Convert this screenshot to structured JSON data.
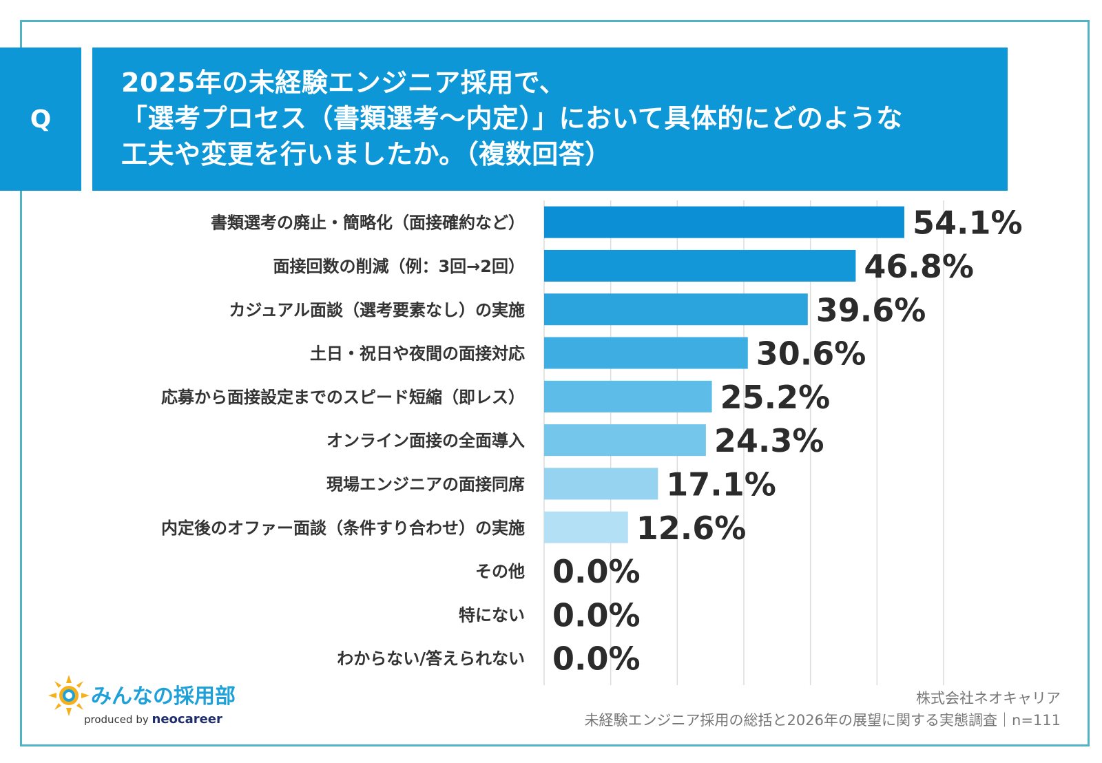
{
  "question": {
    "marker": "Q",
    "lines": [
      "2025年の未経験エンジニア採用で、",
      "「選考プロセス（書類選考〜内定）」において具体的にどのような",
      "工夫や変更を行いましたか。（複数回答）"
    ]
  },
  "chart_data": {
    "type": "bar",
    "orientation": "horizontal",
    "categories": [
      "書類選考の廃止・簡略化（面接確約など）",
      "面接回数の削減（例：3回→2回）",
      "カジュアル面談（選考要素なし）の実施",
      "土日・祝日や夜間の面接対応",
      "応募から面接設定までのスピード短縮（即レス）",
      "オンライン面接の全面導入",
      "現場エンジニアの面接同席",
      "内定後のオファー面談（条件すり合わせ）の実施",
      "その他",
      "特にない",
      "わからない/答えられない"
    ],
    "values": [
      54.1,
      46.8,
      39.6,
      30.6,
      25.2,
      24.3,
      17.1,
      12.6,
      0.0,
      0.0,
      0.0
    ],
    "value_labels": [
      "54.1%",
      "46.8%",
      "39.6%",
      "30.6%",
      "25.2%",
      "24.3%",
      "17.1%",
      "12.6%",
      "0.0%",
      "0.0%",
      "0.0%"
    ],
    "colors": [
      "#0d8fd6",
      "#1497d9",
      "#2ba4de",
      "#3eaee2",
      "#5ebde8",
      "#74c6eb",
      "#95d3f0",
      "#b3e0f5",
      "#b3e0f5",
      "#b3e0f5",
      "#b3e0f5"
    ],
    "xlim": [
      0,
      60
    ],
    "grid": true,
    "unit": "%"
  },
  "brand": {
    "logo_text": "みんなの採用部",
    "produced_by": "produced by",
    "company_logo": "neocareer"
  },
  "source": {
    "company": "株式会社ネオキャリア",
    "survey": "未経験エンジニア採用の総括と2026年の展望に関する実態調査｜n=111"
  }
}
